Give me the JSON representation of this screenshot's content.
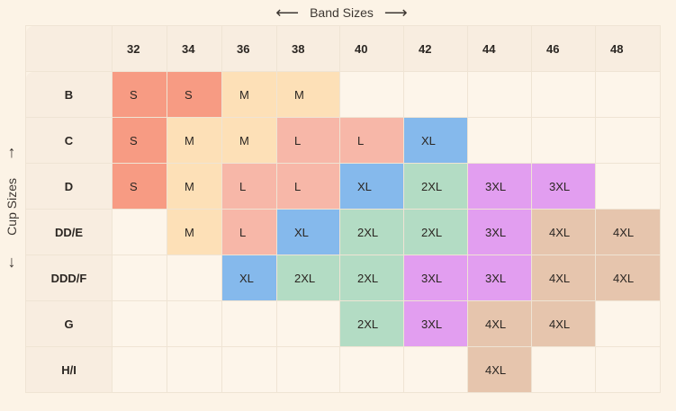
{
  "band_axis": {
    "label": "Band Sizes",
    "left_arrow": "⟵",
    "right_arrow": "⟶"
  },
  "cup_axis": {
    "label": "Cup Sizes",
    "up_arrow": "↑",
    "down_arrow": "↓"
  },
  "bands": [
    "32",
    "34",
    "36",
    "38",
    "40",
    "42",
    "44",
    "46",
    "48"
  ],
  "rows": [
    {
      "cup": "B",
      "cells": [
        "S",
        "S",
        "M",
        "M",
        "",
        "",
        "",
        "",
        ""
      ]
    },
    {
      "cup": "C",
      "cells": [
        "S",
        "M",
        "M",
        "L",
        "L",
        "XL",
        "",
        "",
        ""
      ]
    },
    {
      "cup": "D",
      "cells": [
        "S",
        "M",
        "L",
        "L",
        "XL",
        "2XL",
        "3XL",
        "3XL",
        ""
      ]
    },
    {
      "cup": "DD/E",
      "cells": [
        "",
        "M",
        "L",
        "XL",
        "2XL",
        "2XL",
        "3XL",
        "4XL",
        "4XL"
      ]
    },
    {
      "cup": "DDD/F",
      "cells": [
        "",
        "",
        "XL",
        "2XL",
        "2XL",
        "3XL",
        "3XL",
        "4XL",
        "4XL"
      ]
    },
    {
      "cup": "G",
      "cells": [
        "",
        "",
        "",
        "",
        "2XL",
        "3XL",
        "4XL",
        "4XL",
        ""
      ]
    },
    {
      "cup": "H/I",
      "cells": [
        "",
        "",
        "",
        "",
        "",
        "",
        "4XL",
        "",
        ""
      ]
    }
  ],
  "size_colors": {
    "S": "#f79b83",
    "M": "#fde0b7",
    "L": "#f7b7a8",
    "XL": "#85b9ec",
    "2XL": "#b3dcc4",
    "3XL": "#e29ef0",
    "4XL": "#e6c5ad"
  }
}
